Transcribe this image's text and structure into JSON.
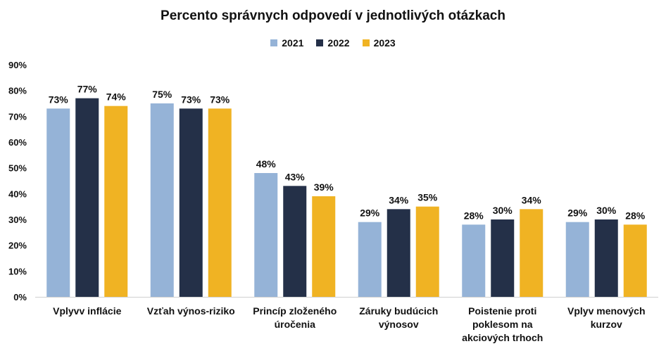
{
  "chart_data": {
    "type": "bar",
    "title": "Percento správnych odpovedí v jednotlivých otázkach",
    "categories": [
      [
        "Vplyvv inflácie"
      ],
      [
        "Vzťah výnos-riziko"
      ],
      [
        "Princíp zloženého",
        "úročenia"
      ],
      [
        "Záruky budúcich",
        "výnosov"
      ],
      [
        "Poistenie proti",
        "poklesom na",
        "akciových trhoch"
      ],
      [
        "Vplyv menových",
        "kurzov"
      ]
    ],
    "series": [
      {
        "name": "2021",
        "color": "#95B3D7",
        "values": [
          73,
          75,
          48,
          29,
          28,
          29
        ]
      },
      {
        "name": "2022",
        "color": "#243048",
        "values": [
          77,
          73,
          43,
          34,
          30,
          30
        ]
      },
      {
        "name": "2023",
        "color": "#F0B323",
        "values": [
          74,
          73,
          39,
          35,
          34,
          28
        ]
      }
    ],
    "ylim": [
      0,
      90
    ],
    "yticks": [
      "0%",
      "10%",
      "20%",
      "30%",
      "40%",
      "50%",
      "60%",
      "70%",
      "80%",
      "90%"
    ],
    "value_suffix": "%",
    "legend": "top-center",
    "grid": false
  }
}
